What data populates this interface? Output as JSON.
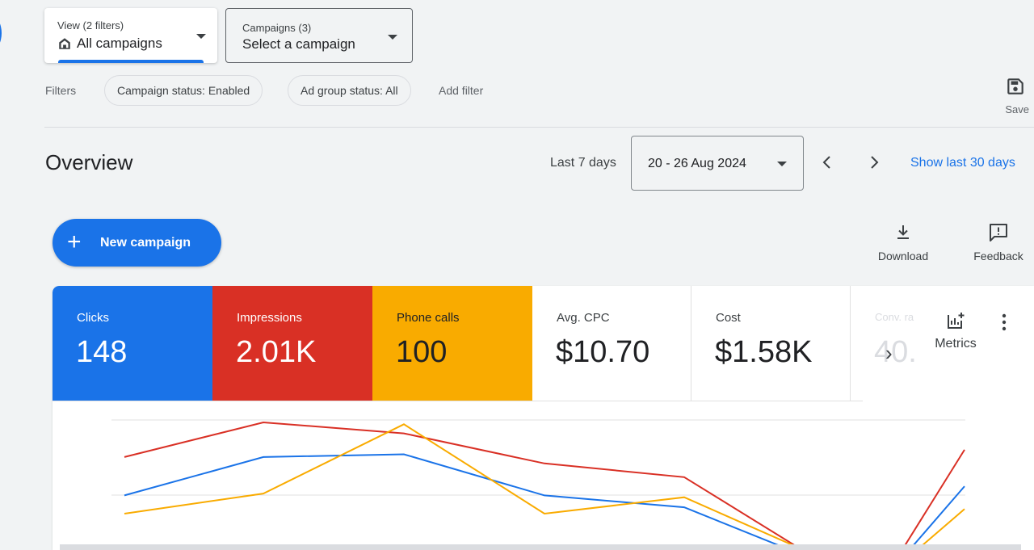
{
  "view_selector": {
    "small": "View (2 filters)",
    "main": "All campaigns",
    "icon": "home-icon"
  },
  "campaign_selector": {
    "small": "Campaigns (3)",
    "main": "Select a campaign"
  },
  "filters": {
    "label": "Filters",
    "chips": [
      "Campaign status: Enabled",
      "Ad group status: All"
    ],
    "add_filter": "Add filter",
    "save_label": "Save"
  },
  "overview": {
    "title": "Overview",
    "range_label": "Last 7 days",
    "date_range": "20 - 26 Aug 2024",
    "show_link": "Show last 30 days"
  },
  "actions": {
    "new_campaign": "New campaign",
    "download": "Download",
    "feedback": "Feedback"
  },
  "metrics": [
    {
      "label": "Clicks",
      "value": "148",
      "color": "#1a73e8"
    },
    {
      "label": "Impressions",
      "value": "2.01K",
      "color": "#d93025"
    },
    {
      "label": "Phone calls",
      "value": "100",
      "color": "#f9ab00"
    },
    {
      "label": "Avg. CPC",
      "value": "$10.70"
    },
    {
      "label": "Cost",
      "value": "$1.58K"
    },
    {
      "label": "Conv. ra",
      "value": "40."
    }
  ],
  "metrics_button": "Metrics",
  "chart_data": {
    "type": "line",
    "title": "",
    "series": [
      {
        "values": [
          0.62,
          1.0,
          0.88,
          0.55,
          0.4,
          -0.55,
          -0.55,
          0.7
        ],
        "color": "#d93025"
      },
      {
        "values": [
          0.2,
          0.62,
          0.65,
          0.2,
          0.07,
          -0.55,
          -0.6,
          0.3
        ],
        "color": "#1a73e8"
      },
      {
        "values": [
          0.0,
          0.22,
          0.98,
          0.0,
          0.18,
          -0.5,
          -0.62,
          0.05
        ],
        "color": "#f9ab00"
      }
    ],
    "grid": true
  }
}
